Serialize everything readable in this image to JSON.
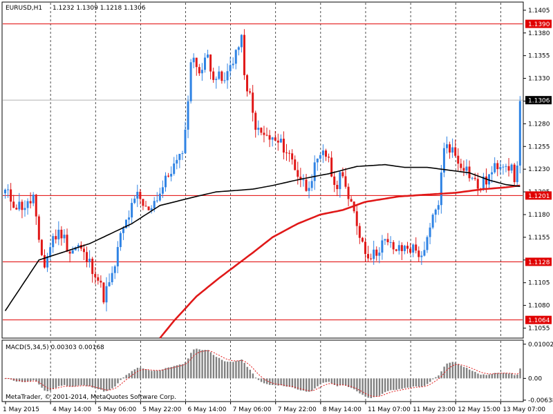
{
  "chart_data": [
    {
      "type": "candlestick",
      "symbol_label": "EURUSD,H1",
      "ohlc_label": "1.1232 1.1309 1.1218 1.1306",
      "ylim": [
        1.1044,
        1.1414
      ],
      "y_ticks": [
        "1.1405",
        "1.1380",
        "1.1355",
        "1.1330",
        "1.1305",
        "1.1280",
        "1.1255",
        "1.1230",
        "1.1205",
        "1.1180",
        "1.1155",
        "1.1130",
        "1.1105",
        "1.1080",
        "1.1055"
      ],
      "y_tick_values": [
        1.1405,
        1.138,
        1.1355,
        1.133,
        1.1305,
        1.128,
        1.1255,
        1.123,
        1.1205,
        1.118,
        1.1155,
        1.113,
        1.1105,
        1.108,
        1.1055
      ],
      "levels": [
        {
          "label": "1.1390",
          "value": 1.139,
          "color": "#e00000"
        },
        {
          "label": "1.1201",
          "value": 1.1201,
          "color": "#e00000"
        },
        {
          "label": "1.1128",
          "value": 1.1128,
          "color": "#e00000"
        },
        {
          "label": "1.1064",
          "value": 1.1064,
          "color": "#e00000"
        }
      ],
      "current_price": {
        "label": "1.1306",
        "value": 1.1306
      },
      "colors": {
        "bull": "#2f83e4",
        "bear": "#e01818",
        "ma_fast": "#000000",
        "ma_slow": "#e01818",
        "level": "#e00000"
      },
      "anchors": [
        [
          0,
          1.1205
        ],
        [
          4,
          1.119
        ],
        [
          8,
          1.119
        ],
        [
          10,
          1.12
        ],
        [
          12,
          1.1145
        ],
        [
          14,
          1.1125
        ],
        [
          17,
          1.1155
        ],
        [
          20,
          1.116
        ],
        [
          23,
          1.114
        ],
        [
          26,
          1.1145
        ],
        [
          29,
          1.113
        ],
        [
          32,
          1.1118
        ],
        [
          35,
          1.109
        ],
        [
          38,
          1.111
        ],
        [
          41,
          1.1155
        ],
        [
          44,
          1.118
        ],
        [
          47,
          1.12
        ],
        [
          50,
          1.1185
        ],
        [
          53,
          1.1195
        ],
        [
          56,
          1.121
        ],
        [
          59,
          1.123
        ],
        [
          62,
          1.124
        ],
        [
          64,
          1.127
        ],
        [
          66,
          1.135
        ],
        [
          68,
          1.1345
        ],
        [
          70,
          1.134
        ],
        [
          72,
          1.1355
        ],
        [
          74,
          1.1335
        ],
        [
          76,
          1.133
        ],
        [
          78,
          1.1325
        ],
        [
          80,
          1.1345
        ],
        [
          82,
          1.136
        ],
        [
          84,
          1.137
        ],
        [
          86,
          1.131
        ],
        [
          87,
          1.131
        ],
        [
          88,
          1.129
        ],
        [
          90,
          1.127
        ],
        [
          93,
          1.1265
        ],
        [
          96,
          1.126
        ],
        [
          99,
          1.1255
        ],
        [
          102,
          1.124
        ],
        [
          104,
          1.1225
        ],
        [
          107,
          1.121
        ],
        [
          110,
          1.123
        ],
        [
          113,
          1.1245
        ],
        [
          115,
          1.1245
        ],
        [
          117,
          1.1205
        ],
        [
          118,
          1.1215
        ],
        [
          120,
          1.123
        ],
        [
          122,
          1.1195
        ],
        [
          124,
          1.118
        ],
        [
          126,
          1.116
        ],
        [
          128,
          1.114
        ],
        [
          131,
          1.1135
        ],
        [
          134,
          1.115
        ],
        [
          137,
          1.1145
        ],
        [
          140,
          1.114
        ],
        [
          143,
          1.1145
        ],
        [
          146,
          1.114
        ],
        [
          149,
          1.1135
        ],
        [
          150,
          1.115
        ],
        [
          152,
          1.1175
        ],
        [
          154,
          1.1195
        ],
        [
          156,
          1.125
        ],
        [
          157,
          1.126
        ],
        [
          159,
          1.125
        ],
        [
          161,
          1.124
        ],
        [
          163,
          1.1235
        ],
        [
          166,
          1.122
        ],
        [
          168,
          1.121
        ],
        [
          170,
          1.1215
        ],
        [
          173,
          1.1225
        ],
        [
          175,
          1.1235
        ],
        [
          177,
          1.124
        ],
        [
          179,
          1.1235
        ],
        [
          181,
          1.122
        ],
        [
          182,
          1.123
        ],
        [
          183,
          1.1305
        ]
      ],
      "ma_fast": [
        [
          0,
          1.1074
        ],
        [
          12,
          1.113
        ],
        [
          30,
          1.1148
        ],
        [
          45,
          1.117
        ],
        [
          55,
          1.119
        ],
        [
          68,
          1.12
        ],
        [
          75,
          1.1205
        ],
        [
          88,
          1.1208
        ],
        [
          95,
          1.1212
        ],
        [
          105,
          1.1219
        ],
        [
          115,
          1.1225
        ],
        [
          125,
          1.1233
        ],
        [
          135,
          1.1235
        ],
        [
          142,
          1.1232
        ],
        [
          150,
          1.1232
        ],
        [
          155,
          1.123
        ],
        [
          165,
          1.1226
        ],
        [
          172,
          1.1218
        ],
        [
          178,
          1.1213
        ],
        [
          183,
          1.1211
        ]
      ],
      "ma_slow": [
        [
          55,
          1.1044
        ],
        [
          60,
          1.1063
        ],
        [
          68,
          1.109
        ],
        [
          76,
          1.111
        ],
        [
          88,
          1.1138
        ],
        [
          95,
          1.1155
        ],
        [
          104,
          1.117
        ],
        [
          112,
          1.118
        ],
        [
          120,
          1.1185
        ],
        [
          128,
          1.1194
        ],
        [
          140,
          1.12
        ],
        [
          150,
          1.1202
        ],
        [
          160,
          1.1204
        ],
        [
          170,
          1.1208
        ],
        [
          178,
          1.121
        ],
        [
          183,
          1.1212
        ]
      ],
      "x_labels": [
        "1 May 2015",
        "4 May 14:00",
        "5 May 06:00",
        "5 May 22:00",
        "6 May 14:00",
        "7 May 06:00",
        "7 May 22:00",
        "8 May 14:00",
        "11 May 07:00",
        "11 May 23:00",
        "12 May 15:00",
        "13 May 07:00"
      ],
      "x_label_bars": [
        0,
        16,
        32,
        48,
        64,
        80,
        96,
        112,
        128,
        144,
        160,
        176
      ],
      "bar_count": 184
    },
    {
      "type": "bar",
      "name_label": "MACD(5,34,5) 0.00303 0.00168",
      "ylim": [
        -0.0068,
        0.0112
      ],
      "y_ticks": [
        "0.01002",
        "0.00",
        "-0.00638"
      ],
      "y_tick_values": [
        0.01002,
        0.0,
        -0.00638
      ],
      "signal_color": "#e01818",
      "hist_color": "#808080"
    }
  ],
  "copyright": "MetaTrader, © 2001-2014, MetaQuotes Software Corp."
}
